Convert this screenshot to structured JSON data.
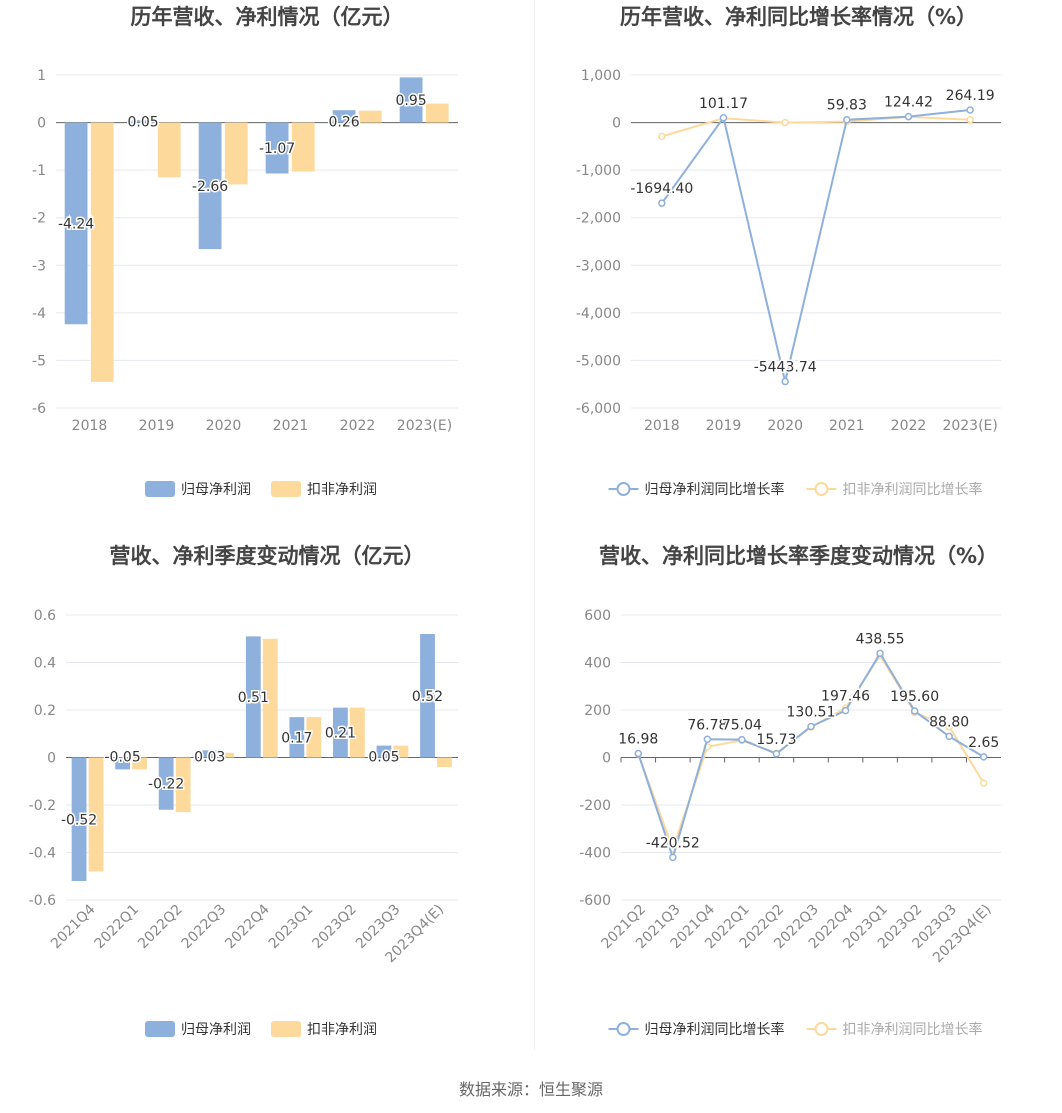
{
  "colors": {
    "blue": "#8eb0dc",
    "orange": "#fdd99b",
    "grid": "#e6e8ef",
    "axis": "#666666",
    "label": "#888888",
    "title": "#444444"
  },
  "source_text": "数据来源：恒生聚源",
  "chart_data": [
    {
      "type": "bar",
      "title": "历年营收、净利情况（亿元）",
      "categories": [
        "2018",
        "2019",
        "2020",
        "2021",
        "2022",
        "2023(E)"
      ],
      "ylim": [
        -6,
        1
      ],
      "yticks": [
        "1",
        "0",
        "-1",
        "-2",
        "-3",
        "-4",
        "-5",
        "-6"
      ],
      "series": [
        {
          "name": "归母净利润",
          "values": [
            -4.24,
            0.05,
            -2.66,
            -1.07,
            0.26,
            0.95
          ],
          "labels": [
            "-4.24",
            "0.05",
            "-2.66",
            "-1.07",
            "0.26",
            "0.95"
          ]
        },
        {
          "name": "扣非净利润",
          "values": [
            -5.45,
            -1.15,
            -1.3,
            -1.03,
            0.25,
            0.4
          ]
        }
      ]
    },
    {
      "type": "line",
      "title": "历年营收、净利同比增长率情况（%）",
      "categories": [
        "2018",
        "2019",
        "2020",
        "2021",
        "2022",
        "2023(E)"
      ],
      "ylim": [
        -6000,
        1000
      ],
      "yticks": [
        "1,000",
        "0",
        "-1,000",
        "-2,000",
        "-3,000",
        "-4,000",
        "-5,000",
        "-6,000"
      ],
      "series": [
        {
          "name": "归母净利润同比增长率",
          "values": [
            -1694.4,
            101.17,
            -5443.74,
            59.83,
            124.42,
            264.19
          ],
          "labels": [
            "-1694.40",
            "101.17",
            "-5443.74",
            "59.83",
            "124.42",
            "264.19"
          ]
        },
        {
          "name": "扣非净利润同比增长率",
          "values": [
            -290,
            90,
            0,
            20,
            120,
            60
          ]
        }
      ]
    },
    {
      "type": "bar",
      "title": "营收、净利季度变动情况（亿元）",
      "categories": [
        "2021Q4",
        "2022Q1",
        "2022Q2",
        "2022Q3",
        "2022Q4",
        "2023Q1",
        "2023Q2",
        "2023Q3",
        "2023Q4(E)"
      ],
      "ylim": [
        -0.6,
        0.6
      ],
      "yticks": [
        "0.6",
        "0.4",
        "0.2",
        "0",
        "-0.2",
        "-0.4",
        "-0.6"
      ],
      "series": [
        {
          "name": "归母净利润",
          "values": [
            -0.52,
            -0.05,
            -0.22,
            0.03,
            0.51,
            0.17,
            0.21,
            0.05,
            0.52
          ],
          "labels": [
            "-0.52",
            "-0.05",
            "-0.22",
            "0.03",
            "0.51",
            "0.17",
            "0.21",
            "0.05",
            "0.52"
          ]
        },
        {
          "name": "扣非净利润",
          "values": [
            -0.48,
            -0.05,
            -0.23,
            0.02,
            0.5,
            0.17,
            0.21,
            0.05,
            -0.04
          ]
        }
      ]
    },
    {
      "type": "line",
      "title": "营收、净利同比增长率季度变动情况（%）",
      "categories": [
        "2021Q2",
        "2021Q3",
        "2021Q4",
        "2022Q1",
        "2022Q2",
        "2022Q3",
        "2022Q4",
        "2023Q1",
        "2023Q2",
        "2023Q3",
        "2023Q4(E)"
      ],
      "ylim": [
        -600,
        600
      ],
      "yticks": [
        "600",
        "400",
        "200",
        "0",
        "-200",
        "-400",
        "-600"
      ],
      "series": [
        {
          "name": "归母净利润同比增长率",
          "values": [
            16.98,
            -420.52,
            76.78,
            75.04,
            15.73,
            130.51,
            197.46,
            438.55,
            195.6,
            88.8,
            2.65
          ],
          "labels": [
            "16.98",
            "-420.52",
            "76.78",
            "75.04",
            "15.73",
            "130.51",
            "197.46",
            "438.55",
            "195.60",
            "88.80",
            "2.65"
          ]
        },
        {
          "name": "扣非净利润同比增长率",
          "values": [
            15,
            -385,
            45,
            72,
            18,
            128,
            208,
            430,
            190,
            130,
            -108
          ]
        }
      ]
    }
  ]
}
